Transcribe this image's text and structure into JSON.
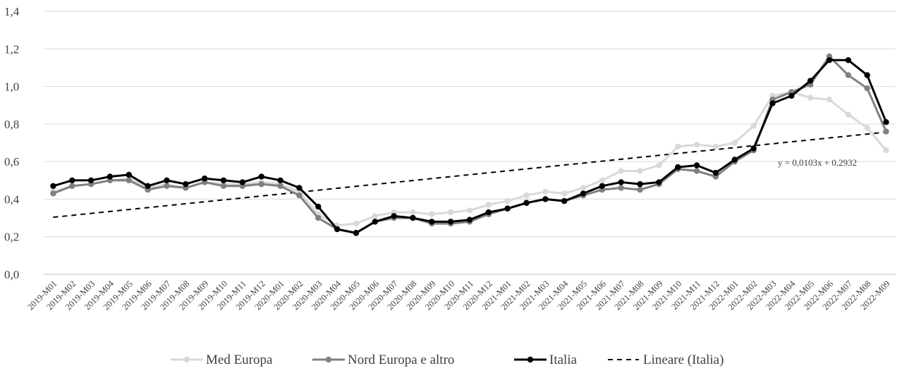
{
  "chart_data": {
    "type": "line",
    "title": "",
    "xlabel": "",
    "ylabel": "",
    "ylim": [
      0,
      1.4
    ],
    "yticks": [
      "0,0",
      "0,2",
      "0,4",
      "0,6",
      "0,8",
      "1,0",
      "1,2",
      "1,4"
    ],
    "grid": "horizontal",
    "legend_position": "bottom",
    "categories": [
      "2019-M01",
      "2019-M02",
      "2019-M03",
      "2019-M04",
      "2019-M05",
      "2019-M06",
      "2019-M07",
      "2019-M08",
      "2019-M09",
      "2019-M10",
      "2019-M11",
      "2019-M12",
      "2020-M01",
      "2020-M02",
      "2020-M03",
      "2020-M04",
      "2020-M05",
      "2020-M06",
      "2020-M07",
      "2020-M08",
      "2020-M09",
      "2020-M10",
      "2020-M11",
      "2020-M12",
      "2021-M01",
      "2021-M02",
      "2021-M03",
      "2021-M04",
      "2021-M05",
      "2021-M06",
      "2021-M07",
      "2021-M08",
      "2021-M09",
      "2021-M10",
      "2021-M11",
      "2021-M12",
      "2022-M01",
      "2022-M02",
      "2022-M03",
      "2022-M04",
      "2022-M05",
      "2022-M06",
      "2022-M07",
      "2022-M08",
      "2022-M09"
    ],
    "series": [
      {
        "name": "Med Europa",
        "color": "#d9d9d9",
        "style": "solid-marker",
        "values": [
          0.44,
          0.47,
          0.48,
          0.5,
          0.51,
          0.46,
          0.48,
          0.46,
          0.49,
          0.48,
          0.48,
          0.49,
          0.48,
          0.44,
          0.32,
          0.26,
          0.27,
          0.31,
          0.33,
          0.33,
          0.32,
          0.33,
          0.34,
          0.37,
          0.39,
          0.42,
          0.44,
          0.43,
          0.46,
          0.5,
          0.55,
          0.55,
          0.58,
          0.68,
          0.69,
          0.68,
          0.7,
          0.79,
          0.95,
          0.97,
          0.94,
          0.93,
          0.85,
          0.78,
          0.66
        ]
      },
      {
        "name": "Nord Europa e altro",
        "color": "#808080",
        "style": "solid-marker",
        "values": [
          0.43,
          0.47,
          0.48,
          0.5,
          0.5,
          0.45,
          0.47,
          0.46,
          0.49,
          0.47,
          0.47,
          0.48,
          0.47,
          0.42,
          0.3,
          0.24,
          0.22,
          0.28,
          0.3,
          0.3,
          0.27,
          0.27,
          0.28,
          0.32,
          0.35,
          0.38,
          0.4,
          0.39,
          0.42,
          0.45,
          0.46,
          0.45,
          0.48,
          0.56,
          0.55,
          0.52,
          0.6,
          0.66,
          0.93,
          0.97,
          1.01,
          1.16,
          1.06,
          0.99,
          0.76
        ]
      },
      {
        "name": "Italia",
        "color": "#000000",
        "style": "solid-marker",
        "values": [
          0.47,
          0.5,
          0.5,
          0.52,
          0.53,
          0.47,
          0.5,
          0.48,
          0.51,
          0.5,
          0.49,
          0.52,
          0.5,
          0.46,
          0.36,
          0.24,
          0.22,
          0.28,
          0.31,
          0.3,
          0.28,
          0.28,
          0.29,
          0.33,
          0.35,
          0.38,
          0.4,
          0.39,
          0.43,
          0.47,
          0.49,
          0.48,
          0.49,
          0.57,
          0.58,
          0.54,
          0.61,
          0.67,
          0.91,
          0.95,
          1.03,
          1.14,
          1.14,
          1.06,
          0.81
        ]
      }
    ],
    "trendline": {
      "name": "Lineare (Italia)",
      "color": "#000000",
      "style": "dashed",
      "slope": 0.0103,
      "intercept": 0.2932,
      "equation": "y = 0,0103x   + 0,2932"
    }
  }
}
